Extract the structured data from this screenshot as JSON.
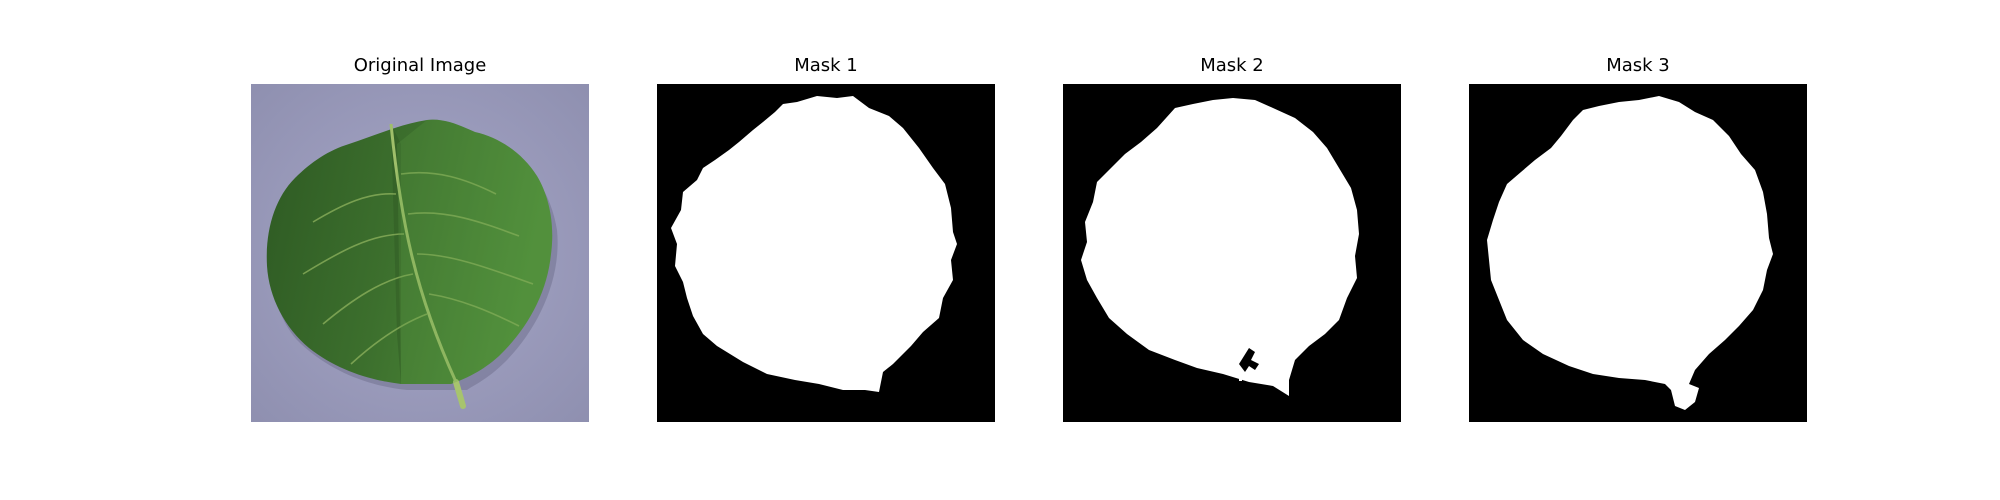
{
  "panels": [
    {
      "title": "Original Image",
      "image": "leaf-photo"
    },
    {
      "title": "Mask 1",
      "image": "leaf-mask"
    },
    {
      "title": "Mask 2",
      "image": "leaf-mask"
    },
    {
      "title": "Mask 3",
      "image": "leaf-mask"
    }
  ],
  "colors": {
    "background_photo": "#9c9cbc",
    "leaf_dark": "#2f5a22",
    "leaf_light": "#4f8a38",
    "mask_background": "#000000",
    "mask_foreground": "#ffffff"
  }
}
